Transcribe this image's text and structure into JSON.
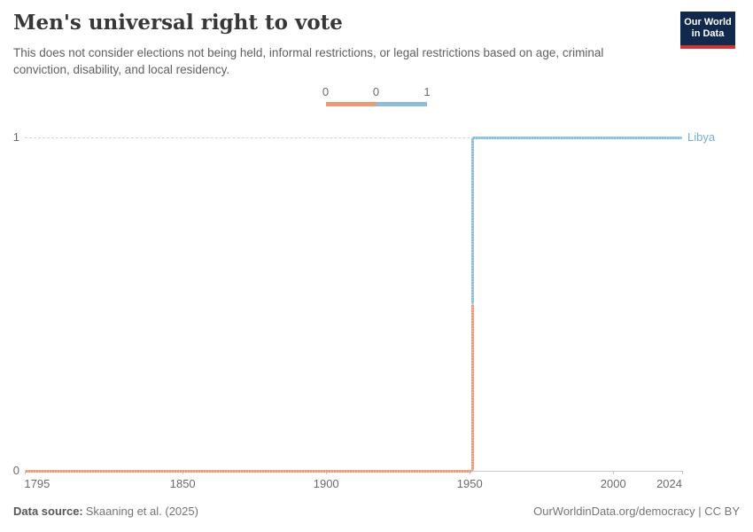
{
  "header": {
    "title": "Men's universal right to vote",
    "subtitle": "This does not consider elections not being held, informal restrictions, or legal restrictions based on age, criminal conviction, disability, and local residency.",
    "logo": {
      "line1": "Our World",
      "line2": "in Data",
      "bg_color": "#12294e",
      "stripe_color": "#d0342c",
      "text_color": "#ffffff"
    }
  },
  "legend": {
    "labels": [
      "0",
      "0",
      "1"
    ]
  },
  "chart_data": {
    "type": "line",
    "subtype": "step",
    "title": "Men's universal right to vote",
    "entity_label": "Libya",
    "entity_label_color": "#77aecd",
    "series": [
      {
        "name": "Libya",
        "points": [
          {
            "x": 1795,
            "y": 0
          },
          {
            "x": 1951,
            "y": 0
          },
          {
            "x": 1951,
            "y": 1
          },
          {
            "x": 2024,
            "y": 1
          }
        ]
      }
    ],
    "xlim": [
      1795,
      2024
    ],
    "ylim": [
      0,
      1
    ],
    "x_ticks": [
      1795,
      1850,
      1900,
      1950,
      2000,
      2024
    ],
    "y_ticks": [
      0,
      1
    ],
    "value_colors": {
      "0": "#ec9b7a",
      "1": "#8cbedb"
    },
    "grid": "horizontal-dashed-at-1-solid-axis-at-0",
    "legend_position": "top-center"
  },
  "footer": {
    "source_label": "Data source:",
    "source_value": "Skaaning et al. (2025)",
    "link": "OurWorldinData.org/democracy | CC BY"
  }
}
